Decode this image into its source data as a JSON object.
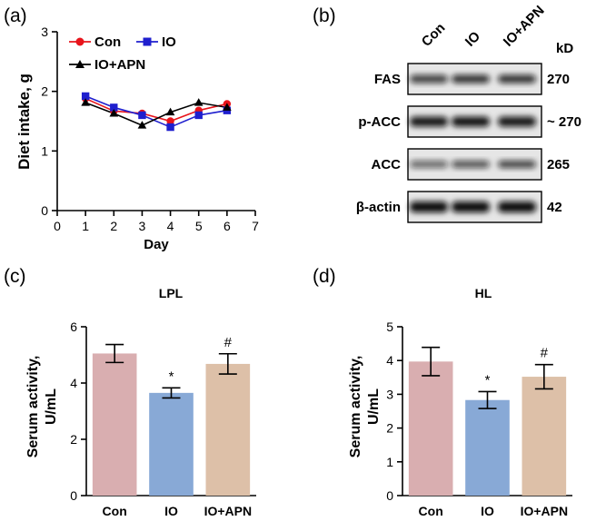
{
  "panels": {
    "a": "(a)",
    "b": "(b)",
    "c": "(c)",
    "d": "(d)"
  },
  "chart_data": [
    {
      "id": "a",
      "type": "line",
      "title": "",
      "xlabel": "Day",
      "ylabel": "Diet intake, g",
      "xlim": [
        0,
        7
      ],
      "ylim": [
        0,
        3
      ],
      "xticks": [
        0,
        1,
        2,
        3,
        4,
        5,
        6,
        7
      ],
      "yticks": [
        0,
        1,
        2,
        3
      ],
      "grid": false,
      "legend_position": "top-left",
      "x": [
        1,
        2,
        3,
        4,
        5,
        6
      ],
      "series": [
        {
          "name": "Con",
          "marker": "circle",
          "color": "#e8141b",
          "values": [
            1.88,
            1.67,
            1.63,
            1.5,
            1.68,
            1.79
          ]
        },
        {
          "name": "IO",
          "marker": "square",
          "color": "#1f1fce",
          "values": [
            1.92,
            1.73,
            1.6,
            1.4,
            1.6,
            1.68
          ]
        },
        {
          "name": "IO+APN",
          "marker": "triangle",
          "color": "#000000",
          "values": [
            1.81,
            1.63,
            1.43,
            1.65,
            1.81,
            1.73
          ]
        }
      ]
    },
    {
      "id": "c",
      "type": "bar",
      "title": "LPL",
      "xlabel": "",
      "ylabel": "Serum activity, U/mL",
      "ylim": [
        0,
        6
      ],
      "yticks": [
        0,
        2,
        4,
        6
      ],
      "categories": [
        "Con",
        "IO",
        "IO+APN"
      ],
      "values": [
        5.05,
        3.65,
        4.68
      ],
      "errors": [
        0.32,
        0.18,
        0.36
      ],
      "annotations": [
        "",
        "*",
        "#"
      ],
      "colors": [
        "#d9aeb0",
        "#88a9d6",
        "#ddc0a8"
      ]
    },
    {
      "id": "d",
      "type": "bar",
      "title": "HL",
      "xlabel": "",
      "ylabel": "Serum activity, U/mL",
      "ylim": [
        0,
        5
      ],
      "yticks": [
        0,
        1,
        2,
        3,
        4,
        5
      ],
      "categories": [
        "Con",
        "IO",
        "IO+APN"
      ],
      "values": [
        3.97,
        2.83,
        3.52
      ],
      "errors": [
        0.42,
        0.25,
        0.36
      ],
      "annotations": [
        "",
        "*",
        "#"
      ],
      "colors": [
        "#d9aeb0",
        "#88a9d6",
        "#ddc0a8"
      ]
    }
  ],
  "blot": {
    "lanes": [
      "Con",
      "IO",
      "IO+APN"
    ],
    "size_header": "kD",
    "rows": [
      {
        "protein": "FAS",
        "size": "270"
      },
      {
        "protein": "p-ACC",
        "size": "~ 270"
      },
      {
        "protein": "ACC",
        "size": "265"
      },
      {
        "protein": "β-actin",
        "size": "42"
      }
    ]
  }
}
